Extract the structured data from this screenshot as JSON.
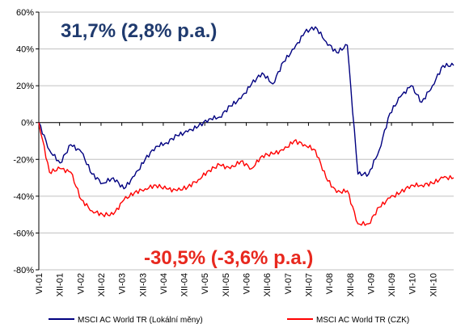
{
  "chart_data": {
    "type": "line",
    "ylim": [
      -80,
      60
    ],
    "y_ticks": [
      "60%",
      "40%",
      "20%",
      "0%",
      "-20%",
      "-40%",
      "-60%",
      "-80%"
    ],
    "x_ticks": [
      "VI-01",
      "XII-01",
      "VI-02",
      "XII-02",
      "VI-03",
      "XII-03",
      "VI-04",
      "XII-04",
      "VI-05",
      "XII-05",
      "VI-06",
      "XII-06",
      "VI-07",
      "XII-07",
      "VI-08",
      "XII-08",
      "VI-09",
      "XII-09",
      "VI-10",
      "XII-10"
    ],
    "grid": "horizontal",
    "legend": "bottom",
    "annotations": [
      {
        "text": "31,7% (2,8% p.a.)",
        "color": "#1f3a6e"
      },
      {
        "text": "-30,5% (-3,6% p.a.)",
        "color": "#e8281e"
      }
    ],
    "series": [
      {
        "name": "MSCI AC World TR (Lokální měny)",
        "color": "#000080",
        "values": [
          0,
          -15,
          -22,
          -12,
          -16,
          -28,
          -33,
          -30,
          -36,
          -29,
          -20,
          -13,
          -11,
          -7,
          -5,
          -2,
          2,
          3,
          9,
          13,
          21,
          27,
          21,
          33,
          40,
          49,
          52,
          44,
          38,
          42,
          -28,
          -28,
          -15,
          5,
          14,
          20,
          11,
          20,
          31,
          31
        ]
      },
      {
        "name": "MSCI AC World TR (CZK)",
        "color": "#ff0000",
        "values": [
          0,
          -27,
          -25,
          -27,
          -42,
          -48,
          -50,
          -50,
          -42,
          -38,
          -36,
          -34,
          -36,
          -37,
          -35,
          -31,
          -26,
          -23,
          -25,
          -21,
          -25,
          -18,
          -17,
          -15,
          -10,
          -12,
          -15,
          -30,
          -38,
          -37,
          -55,
          -55,
          -46,
          -41,
          -38,
          -34,
          -34,
          -33,
          -30,
          -30
        ]
      }
    ]
  }
}
